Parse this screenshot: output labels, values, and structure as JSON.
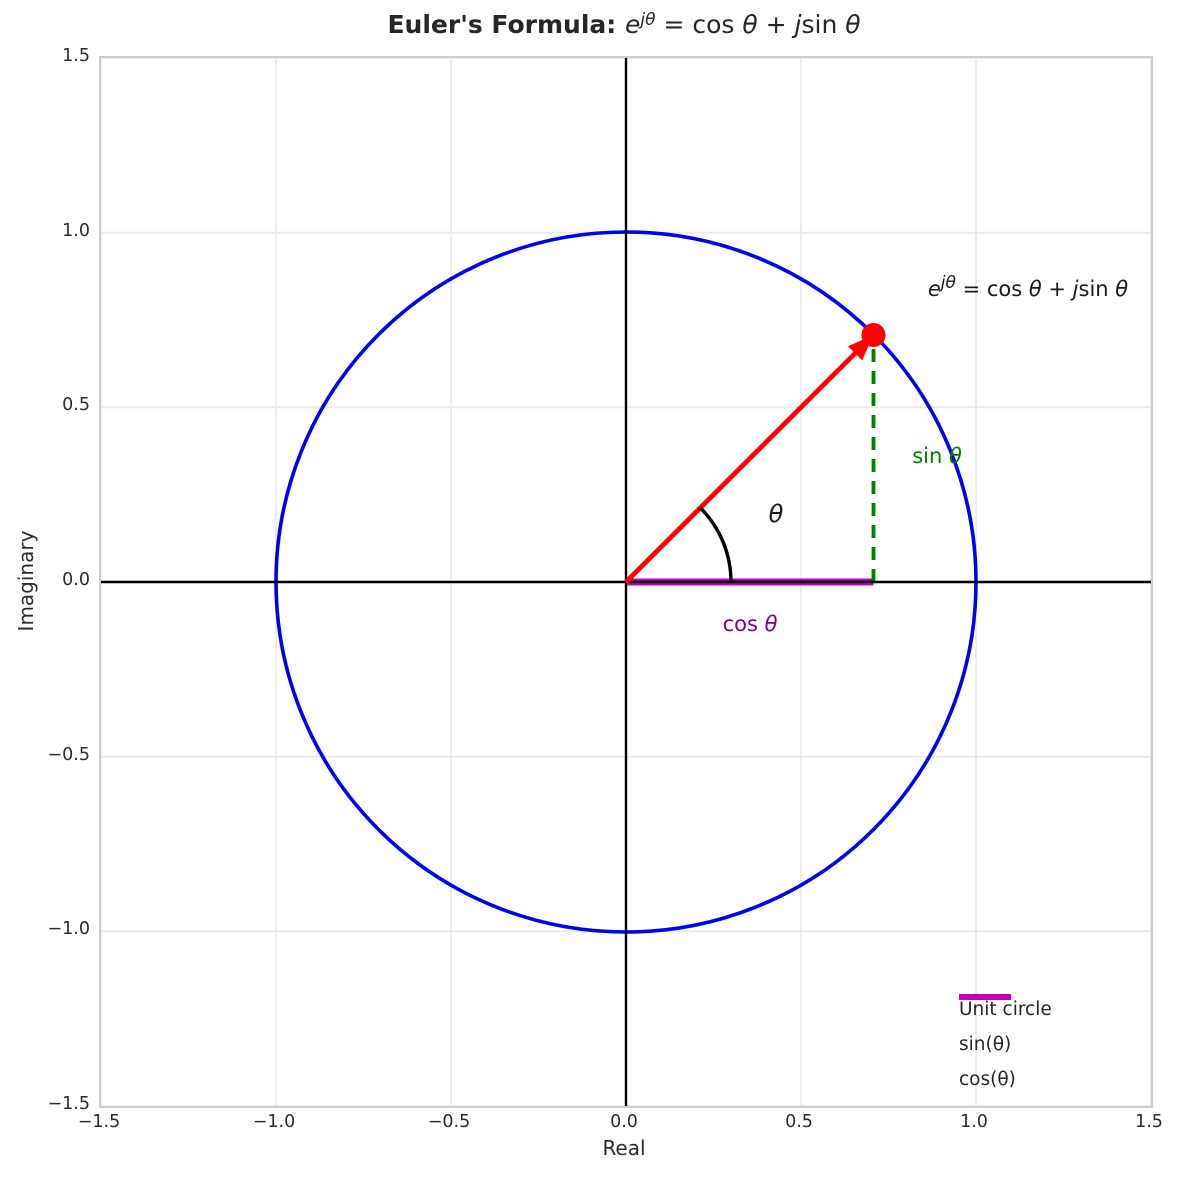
{
  "title": {
    "bold": "Euler's Formula: ",
    "e": "e",
    "sup": "jθ",
    "eq": " = cos ",
    "theta1": "θ",
    "plus": " + ",
    "j": "j",
    "sin": "sin ",
    "theta2": "θ"
  },
  "annotation": {
    "e": "e",
    "sup": "jθ",
    "eq": " = cos ",
    "theta1": "θ",
    "plus": " + ",
    "j": "j",
    "sin": "sin ",
    "theta2": "θ"
  },
  "labels": {
    "theta": "θ",
    "cos_prefix": "cos ",
    "cos_theta": "θ",
    "sin_prefix": "sin ",
    "sin_theta": "θ"
  },
  "legend": {
    "items": [
      {
        "label": "Unit circle",
        "color": "#0000f0",
        "dash": "",
        "width": 4
      },
      {
        "label": "sin(θ)",
        "color": "#008000",
        "dash": "14 9",
        "width": 4
      },
      {
        "label": "cos(θ)",
        "color": "#c000c0",
        "dash": "",
        "width": 6
      }
    ]
  },
  "chart_data": {
    "type": "line",
    "title": "Euler's Formula: e^{jθ} = cos θ + j sin θ",
    "xlabel": "Real",
    "ylabel": "Imaginary",
    "xlim": [
      -1.5,
      1.5
    ],
    "ylim": [
      -1.5,
      1.5
    ],
    "xticks": [
      -1.5,
      -1.0,
      -0.5,
      0.0,
      0.5,
      1.0,
      1.5
    ],
    "yticks": [
      -1.5,
      -1.0,
      -0.5,
      0.0,
      0.5,
      1.0,
      1.5
    ],
    "grid": true,
    "legend_position": "lower right",
    "theta_deg": 45,
    "point": {
      "x": 0.7071,
      "y": 0.7071
    },
    "unit_circle": {
      "center_x": 0,
      "center_y": 0,
      "radius": 1.0
    },
    "cos_segment": {
      "x1": 0,
      "y1": 0,
      "x2": 0.7071,
      "y2": 0
    },
    "sin_segment": {
      "x1": 0.7071,
      "y1": 0,
      "x2": 0.7071,
      "y2": 0.7071
    },
    "vector": {
      "x1": 0,
      "y1": 0,
      "x2": 0.7071,
      "y2": 0.7071
    },
    "arc_radius_px": 105,
    "colors": {
      "circle": "#0000f0",
      "vector": "#fe0000",
      "sin": "#008000",
      "cos": "#c000c0",
      "axis": "#000000",
      "grid": "#ebebeb",
      "sin_label": "#008000",
      "cos_label": "#800080"
    }
  }
}
